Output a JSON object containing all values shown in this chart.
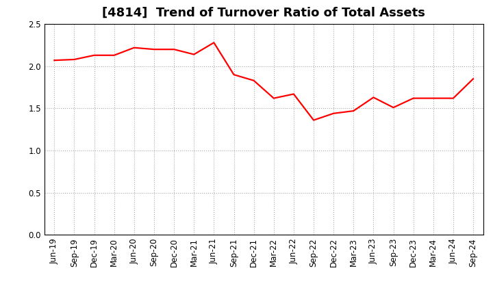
{
  "title": "[4814]  Trend of Turnover Ratio of Total Assets",
  "labels": [
    "Jun-19",
    "Sep-19",
    "Dec-19",
    "Mar-20",
    "Jun-20",
    "Sep-20",
    "Dec-20",
    "Mar-21",
    "Jun-21",
    "Sep-21",
    "Dec-21",
    "Mar-22",
    "Jun-22",
    "Sep-22",
    "Dec-22",
    "Mar-23",
    "Jun-23",
    "Sep-23",
    "Dec-23",
    "Mar-24",
    "Jun-24",
    "Sep-24"
  ],
  "values": [
    2.07,
    2.08,
    2.13,
    2.13,
    2.22,
    2.2,
    2.2,
    2.14,
    2.28,
    1.9,
    1.83,
    1.62,
    1.67,
    1.36,
    1.44,
    1.47,
    1.63,
    1.51,
    1.62,
    1.62,
    1.62,
    1.85
  ],
  "line_color": "#FF0000",
  "line_width": 1.6,
  "ylim": [
    0.0,
    2.5
  ],
  "yticks": [
    0.0,
    0.5,
    1.0,
    1.5,
    2.0,
    2.5
  ],
  "grid_color": "#AAAAAA",
  "grid_linestyle": ":",
  "bg_color": "#FFFFFF",
  "title_fontsize": 13,
  "tick_fontsize": 8.5,
  "fig_width": 7.2,
  "fig_height": 4.4
}
